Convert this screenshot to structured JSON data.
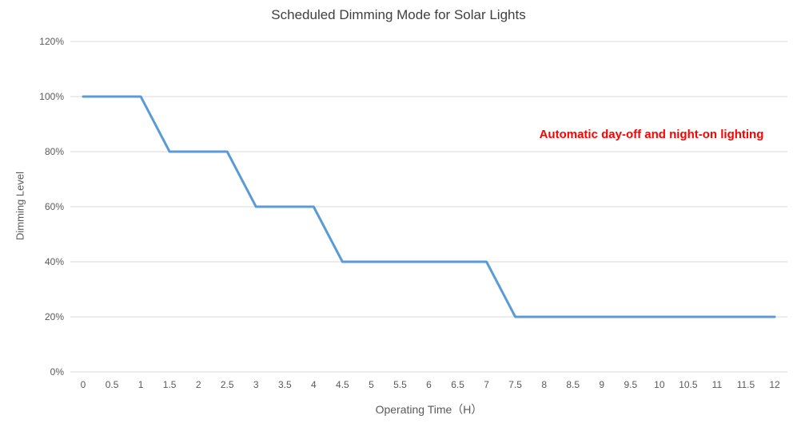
{
  "title": "Scheduled Dimming Mode for Solar Lights",
  "annotation": {
    "text": "Automatic day-off and night-on lighting",
    "color": "#FF0000"
  },
  "chart_data": {
    "type": "line",
    "title": "Scheduled Dimming Mode for Solar Lights",
    "xlabel": "Operating Time（H）",
    "ylabel": "Dimming Level",
    "categories": [
      "0",
      "0.5",
      "1",
      "1.5",
      "2",
      "2.5",
      "3",
      "3.5",
      "4",
      "4.5",
      "5",
      "5.5",
      "6",
      "6.5",
      "7",
      "7.5",
      "8",
      "8.5",
      "9",
      "9.5",
      "10",
      "10.5",
      "11",
      "11.5",
      "12"
    ],
    "values": [
      100,
      100,
      100,
      80,
      80,
      80,
      60,
      60,
      60,
      40,
      40,
      40,
      40,
      40,
      40,
      20,
      20,
      20,
      20,
      20,
      20,
      20,
      20,
      20,
      20
    ],
    "ylim": [
      0,
      120
    ],
    "ytick_step": 20,
    "ytick_suffix": "%",
    "grid": "horizontal",
    "legend": "none",
    "line_color": "#5B9BD5",
    "grid_color": "#D9D9D9",
    "tick_label_color": "#595959",
    "title_color": "#404040"
  }
}
